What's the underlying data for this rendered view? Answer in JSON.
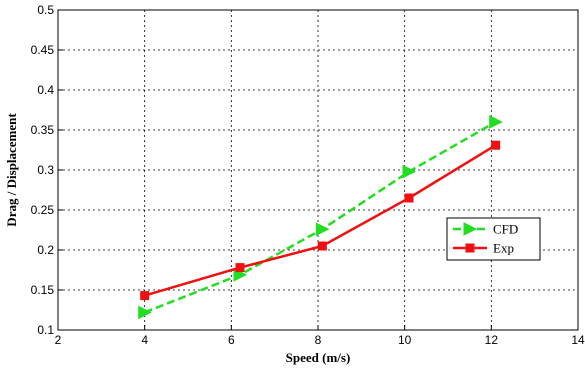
{
  "chart_data": {
    "type": "line",
    "title": "",
    "xlabel": "Speed (m/s)",
    "ylabel": "Drag / Displacement",
    "xlim": [
      2,
      14
    ],
    "ylim": [
      0.1,
      0.5
    ],
    "xticks": [
      "2",
      "4",
      "6",
      "8",
      "10",
      "12",
      "14"
    ],
    "yticks": [
      "0.1",
      "0.15",
      "0.2",
      "0.25",
      "0.3",
      "0.35",
      "0.4",
      "0.45",
      "0.5"
    ],
    "grid": true,
    "legend_position": "right",
    "series": [
      {
        "name": "CFD",
        "color": "#22dd22",
        "line_style": "dashed",
        "marker": "triangle-right",
        "x": [
          4.0,
          6.2,
          8.1,
          10.1,
          12.1
        ],
        "y": [
          0.122,
          0.169,
          0.226,
          0.298,
          0.36
        ]
      },
      {
        "name": "Exp",
        "color": "#ee1111",
        "line_style": "solid",
        "marker": "square",
        "x": [
          4.0,
          6.2,
          8.1,
          10.1,
          12.1
        ],
        "y": [
          0.143,
          0.178,
          0.205,
          0.265,
          0.331
        ]
      }
    ]
  }
}
